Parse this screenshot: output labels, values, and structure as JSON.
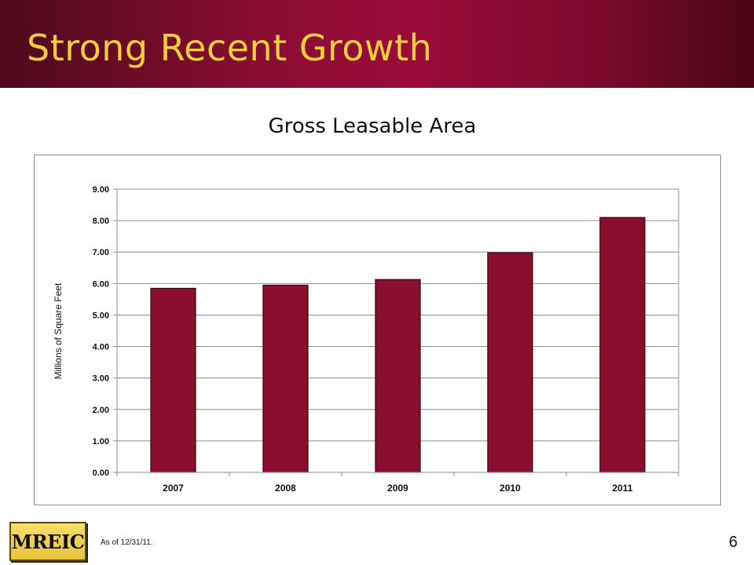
{
  "slide": {
    "title": "Strong Recent Growth",
    "footnote": "As of 12/31/11.",
    "page_number": "6",
    "logo_text": "MREIC"
  },
  "colors": {
    "header_dark": "#4e0a1c",
    "header_mid": "#9a0c3a",
    "title_gold": "#f2cf3a",
    "bar_fill": "#8b0e2e",
    "logo_gold": "#e8c33c"
  },
  "chart_data": {
    "type": "bar",
    "title": "Gross Leasable Area",
    "xlabel": "",
    "ylabel": "Millions of Square Feet",
    "categories": [
      "2007",
      "2008",
      "2009",
      "2010",
      "2011"
    ],
    "values": [
      5.85,
      5.95,
      6.13,
      6.98,
      8.1
    ],
    "ylim": [
      0,
      9
    ],
    "yticks": [
      "0.00",
      "1.00",
      "2.00",
      "3.00",
      "4.00",
      "5.00",
      "6.00",
      "7.00",
      "8.00",
      "9.00"
    ],
    "grid": true,
    "legend": "none"
  }
}
